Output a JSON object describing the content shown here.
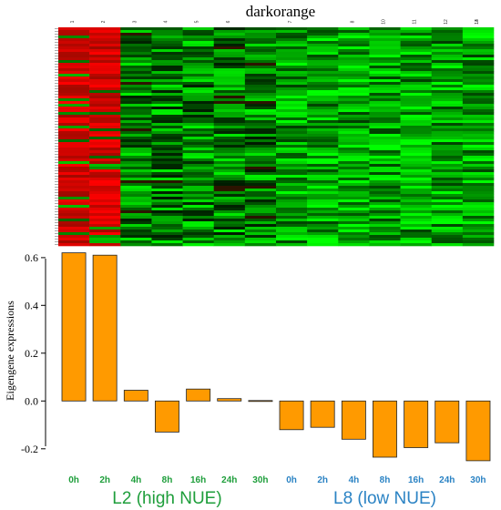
{
  "chart_data": {
    "type": "bar",
    "module_title": "darkorange",
    "ylabel": "Eigengene expressions",
    "ylim": [
      -0.22,
      0.63
    ],
    "yticks": [
      0.6,
      0.4,
      0.2,
      0.0,
      -0.2
    ],
    "ytick_labels": [
      "0.6",
      "0.4",
      "0.2",
      "0.0",
      "-0.2"
    ],
    "categories": [
      "0h",
      "2h",
      "4h",
      "8h",
      "16h",
      "24h",
      "30h",
      "0h",
      "2h",
      "4h",
      "8h",
      "16h",
      "24h",
      "30h"
    ],
    "values": [
      0.62,
      0.61,
      0.045,
      -0.13,
      0.05,
      0.01,
      0.002,
      -0.12,
      -0.11,
      -0.16,
      -0.235,
      -0.195,
      -0.175,
      -0.25
    ],
    "groups": [
      {
        "name": "L2 (high NUE)",
        "color": "#1e9e3b",
        "members": 7
      },
      {
        "name": "L8 (low NUE)",
        "color": "#2b83c4",
        "members": 7
      }
    ],
    "heatmap_column_labels": [
      "1",
      "2",
      "3",
      "4",
      "5",
      "6",
      "7",
      "8",
      "10",
      "11",
      "12",
      "13",
      "14"
    ],
    "bar_color": "#ff9a00",
    "heatmap_colors": {
      "high": "#ff0000",
      "mid": "#000000",
      "low": "#00ff00"
    }
  }
}
